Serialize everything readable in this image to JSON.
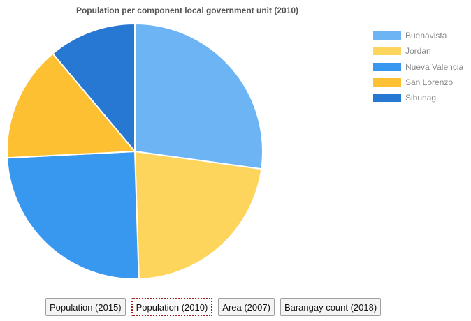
{
  "chart_data": {
    "type": "pie",
    "title": "Population per component local government unit (2010)",
    "categories": [
      "Buenavista",
      "Jordan",
      "Nueva Valencia",
      "San Lorenzo",
      "Sibunag"
    ],
    "values": [
      27.2,
      22.3,
      24.7,
      14.7,
      11.1
    ],
    "colors": [
      "#6cb4f4",
      "#fdd55c",
      "#3898f0",
      "#fdc033",
      "#2778d2"
    ],
    "legend_position": "right"
  },
  "buttons": [
    {
      "label": "Population (2015)",
      "active": false
    },
    {
      "label": "Population (2010)",
      "active": true
    },
    {
      "label": "Area (2007)",
      "active": false
    },
    {
      "label": "Barangay count (2018)",
      "active": false
    }
  ]
}
